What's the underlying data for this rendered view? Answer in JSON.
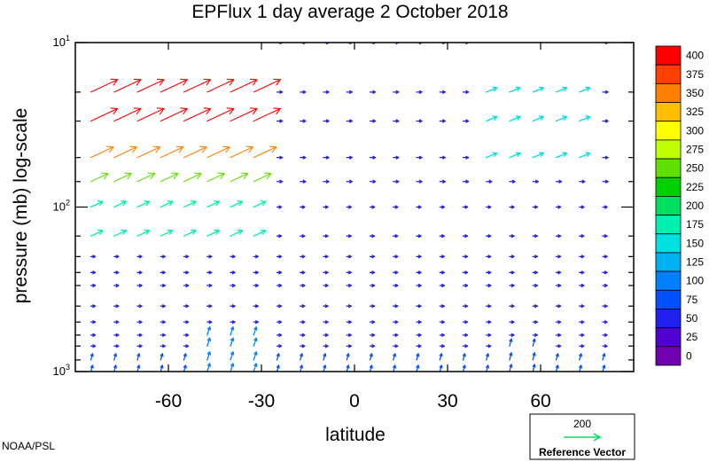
{
  "chart_data": {
    "type": "vector-field",
    "title": "EPFlux  1 day average  2 October   2018",
    "xlabel": "latitude",
    "ylabel": "pressure (mb)  log-scale",
    "x_ticks": [
      -60,
      -30,
      0,
      30,
      60
    ],
    "xlim": [
      -90,
      90
    ],
    "y_scale": "log",
    "ylim": [
      1000,
      10
    ],
    "y_ticks": [
      {
        "value": 10,
        "base": "10",
        "exp": "1"
      },
      {
        "value": 100,
        "base": "10",
        "exp": "2"
      },
      {
        "value": 1000,
        "base": "10",
        "exp": "3"
      }
    ],
    "pressure_levels": [
      10,
      20,
      30,
      50,
      70,
      100,
      150,
      200,
      250,
      300,
      400,
      500,
      600,
      700,
      850,
      1000
    ],
    "colorbar": {
      "labels": [
        "400",
        "375",
        "350",
        "325",
        "300",
        "275",
        "250",
        "225",
        "200",
        "175",
        "150",
        "125",
        "100",
        "75",
        "50",
        "25",
        "0"
      ],
      "colors": [
        "#ff0000",
        "#ff4000",
        "#ff8000",
        "#ffbf00",
        "#ffff00",
        "#bfff00",
        "#60e000",
        "#00d000",
        "#00e060",
        "#00f0b0",
        "#00e0e0",
        "#00b0f0",
        "#0080ff",
        "#0050ff",
        "#2020f0",
        "#5000d0",
        "#7000b0"
      ]
    },
    "reference_vector": {
      "magnitude": "200",
      "label": "Reference Vector",
      "color": "#00e060"
    },
    "grid": false,
    "legend": "bottom-right"
  },
  "credit": "NOAA/PSL"
}
